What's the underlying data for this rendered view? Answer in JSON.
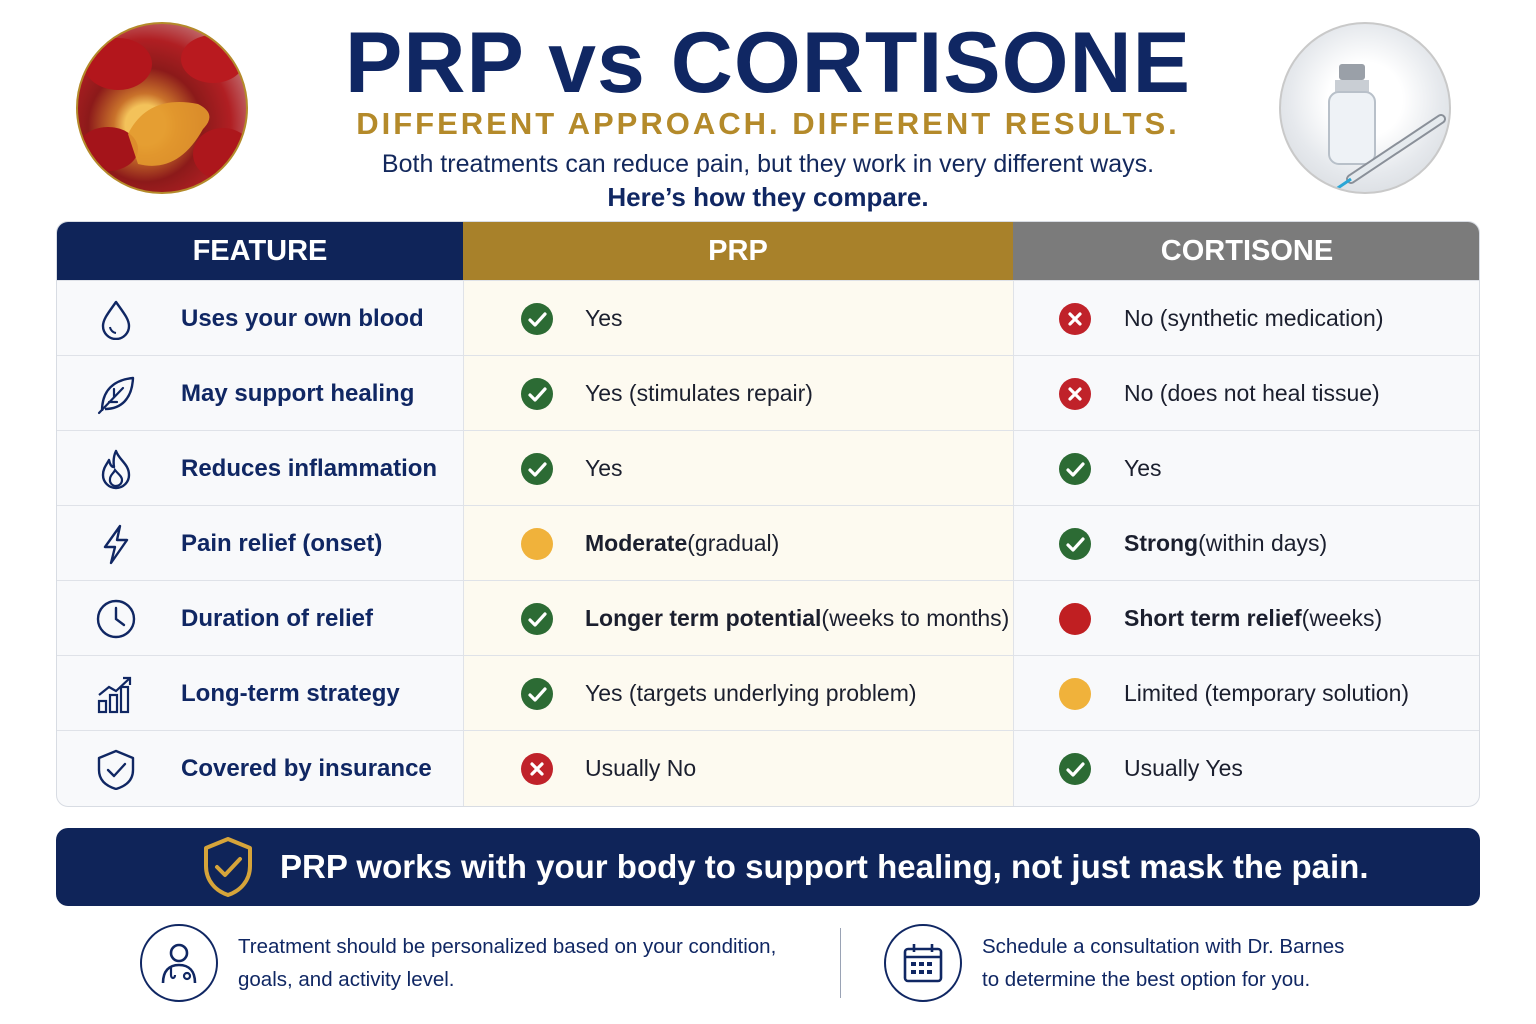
{
  "header": {
    "title": "PRP vs CORTISONE",
    "subtitle": "DIFFERENT APPROACH. DIFFERENT RESULTS.",
    "intro": "Both treatments can reduce pain, but they work in very different ways.",
    "intro_strong": "Here’s how they compare."
  },
  "images": {
    "left": "blood-cells-photo",
    "right": "vial-and-syringe-photo"
  },
  "table": {
    "headers": {
      "feature": "FEATURE",
      "prp": "PRP",
      "cortisone": "CORTISONE"
    },
    "rows": [
      {
        "icon": "blood-drop-icon",
        "feature": "Uses your own blood",
        "prp_status": "check",
        "prp_main": "Yes",
        "prp_extra": "",
        "cortisone_status": "cross",
        "cortisone_main": "No (synthetic medication)",
        "cortisone_extra": ""
      },
      {
        "icon": "leaf-icon",
        "feature": "May support healing",
        "prp_status": "check",
        "prp_main": "Yes (stimulates repair)",
        "prp_extra": "",
        "cortisone_status": "cross",
        "cortisone_main": "No (does not heal tissue)",
        "cortisone_extra": ""
      },
      {
        "icon": "flame-icon",
        "feature": "Reduces inflammation",
        "prp_status": "check",
        "prp_main": "Yes",
        "prp_extra": "",
        "cortisone_status": "check",
        "cortisone_main": "Yes",
        "cortisone_extra": ""
      },
      {
        "icon": "lightning-icon",
        "feature": "Pain relief (onset)",
        "prp_status": "amber",
        "prp_main": "Moderate",
        "prp_extra": " (gradual)",
        "cortisone_status": "check",
        "cortisone_main": "Strong",
        "cortisone_extra": " (within days)"
      },
      {
        "icon": "clock-icon",
        "feature": "Duration of relief",
        "prp_status": "check",
        "prp_main": "Longer term potential",
        "prp_extra": " (weeks to months)",
        "cortisone_status": "red",
        "cortisone_main": "Short term relief",
        "cortisone_extra": " (weeks)"
      },
      {
        "icon": "growth-chart-icon",
        "feature": "Long-term strategy",
        "prp_status": "check",
        "prp_main": "Yes (targets underlying problem)",
        "prp_extra": "",
        "cortisone_status": "amber",
        "cortisone_main": "Limited (temporary solution)",
        "cortisone_extra": ""
      },
      {
        "icon": "shield-check-icon",
        "feature": "Covered by insurance",
        "prp_status": "cross",
        "prp_main": "Usually No",
        "prp_extra": "",
        "cortisone_status": "check",
        "cortisone_main": "Usually Yes",
        "cortisone_extra": ""
      }
    ]
  },
  "banner": {
    "text": "PRP works with your body to support healing, not just mask the pain.",
    "icon": "shield-check-icon"
  },
  "footer": {
    "left": {
      "icon": "doctor-icon",
      "line1": "Treatment should be personalized based on your condition,",
      "line2": "goals, and activity level."
    },
    "right": {
      "icon": "calendar-icon",
      "line1": "Schedule a consultation with Dr. Barnes",
      "line2": "to determine the best option for you."
    }
  },
  "colors": {
    "navy": "#0f2459",
    "gold": "#a8812a",
    "gray": "#7b7b7b",
    "check": "#2c6b34",
    "cross": "#c0222a",
    "amber": "#f0b23b"
  }
}
